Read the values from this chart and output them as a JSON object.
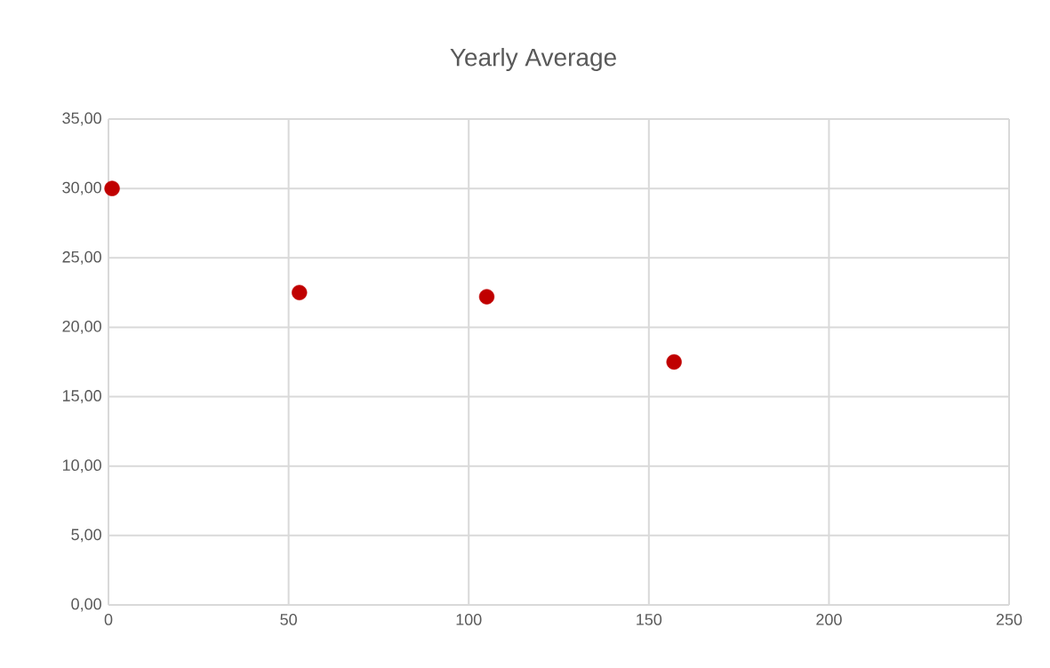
{
  "chart_data": {
    "type": "scatter",
    "title": "Yearly Average",
    "x": [
      1,
      53,
      105,
      157
    ],
    "series": [
      {
        "color": "#c00000",
        "values": [
          30.0,
          22.5,
          22.2,
          17.5
        ]
      }
    ],
    "xlim": [
      0,
      250
    ],
    "xticks": [
      0,
      50,
      100,
      150,
      200,
      250
    ],
    "ylim": [
      0,
      35
    ],
    "yticks": [
      {
        "value": 0,
        "label": "0,00"
      },
      {
        "value": 5,
        "label": "5,00"
      },
      {
        "value": 10,
        "label": "10,00"
      },
      {
        "value": 15,
        "label": "15,00"
      },
      {
        "value": 20,
        "label": "20,00"
      },
      {
        "value": 25,
        "label": "25,00"
      },
      {
        "value": 30,
        "label": "30,00"
      },
      {
        "value": 35,
        "label": "35,00"
      }
    ],
    "grid": true,
    "marker": "circle"
  }
}
